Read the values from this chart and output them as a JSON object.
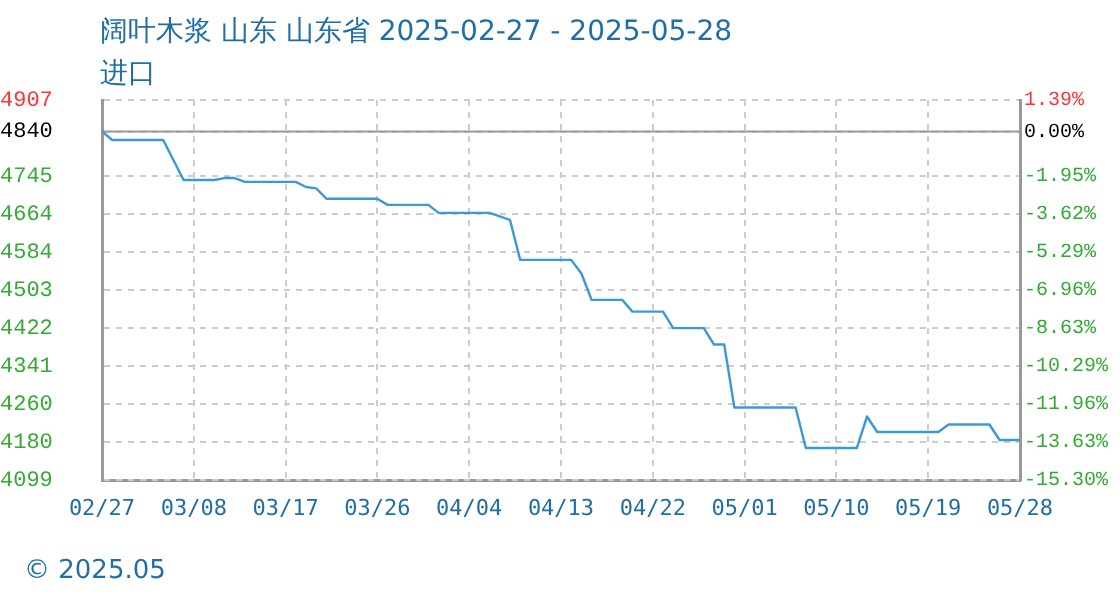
{
  "chart_data": {
    "type": "line",
    "title": "阔叶木浆 山东 山东省 2025-02-27 - 2025-05-28",
    "ylabel": "进口",
    "x": [
      "2025-02-27",
      "2025-02-28",
      "2025-03-05",
      "2025-03-07",
      "2025-03-10",
      "2025-03-11",
      "2025-03-12",
      "2025-03-13",
      "2025-03-18",
      "2025-03-19",
      "2025-03-20",
      "2025-03-21",
      "2025-03-26",
      "2025-03-27",
      "2025-03-31",
      "2025-04-01",
      "2025-04-06",
      "2025-04-08",
      "2025-04-09",
      "2025-04-14",
      "2025-04-15",
      "2025-04-16",
      "2025-04-19",
      "2025-04-20",
      "2025-04-23",
      "2025-04-24",
      "2025-04-27",
      "2025-04-28",
      "2025-04-29",
      "2025-04-30",
      "2025-05-06",
      "2025-05-07",
      "2025-05-12",
      "2025-05-13",
      "2025-05-14",
      "2025-05-20",
      "2025-05-21",
      "2025-05-25",
      "2025-05-26",
      "2025-05-28"
    ],
    "series": [
      {
        "color": "#3a9ad9",
        "values": [
          4840,
          4822,
          4822,
          4737,
          4737,
          4741,
          4741,
          4733,
          4733,
          4722,
          4719,
          4697,
          4697,
          4684,
          4684,
          4667,
          4667,
          4652,
          4567,
          4567,
          4538,
          4482,
          4482,
          4457,
          4457,
          4422,
          4422,
          4387,
          4387,
          4253,
          4253,
          4167,
          4167,
          4234,
          4201,
          4201,
          4217,
          4217,
          4184,
          4184
        ]
      }
    ],
    "xlim": [
      "2025-02-27",
      "2025-05-28"
    ],
    "xticks": [
      {
        "value": "2025-02-27",
        "label": "02/27"
      },
      {
        "value": "2025-03-08",
        "label": "03/08"
      },
      {
        "value": "2025-03-17",
        "label": "03/17"
      },
      {
        "value": "2025-03-26",
        "label": "03/26"
      },
      {
        "value": "2025-04-04",
        "label": "04/04"
      },
      {
        "value": "2025-04-13",
        "label": "04/13"
      },
      {
        "value": "2025-04-22",
        "label": "04/22"
      },
      {
        "value": "2025-05-01",
        "label": "05/01"
      },
      {
        "value": "2025-05-10",
        "label": "05/10"
      },
      {
        "value": "2025-05-19",
        "label": "05/19"
      },
      {
        "value": "2025-05-28",
        "label": "05/28"
      }
    ],
    "ylim": [
      4099,
      4907
    ],
    "yticks": [
      4099,
      4180,
      4260,
      4341,
      4422,
      4503,
      4584,
      4664,
      4745,
      4840,
      4907
    ],
    "y2lim": [
      -15.3,
      1.39
    ],
    "y2ticks": [
      {
        "value": -15.3,
        "label": "-15.30%"
      },
      {
        "value": -13.63,
        "label": "-13.63%"
      },
      {
        "value": -11.96,
        "label": "-11.96%"
      },
      {
        "value": -10.29,
        "label": "-10.29%"
      },
      {
        "value": -8.63,
        "label": "-8.63%"
      },
      {
        "value": -6.96,
        "label": "-6.96%"
      },
      {
        "value": -5.29,
        "label": "-5.29%"
      },
      {
        "value": -3.62,
        "label": "-3.62%"
      },
      {
        "value": -1.95,
        "label": "-1.95%"
      },
      {
        "value": 0,
        "label": "0.00%"
      },
      {
        "value": 1.39,
        "label": "1.39%"
      }
    ],
    "ref_lines": [
      {
        "axis": "y",
        "value": 4840,
        "color": "#999999"
      }
    ],
    "annotations": [
      "© 2025.05"
    ],
    "grid": true,
    "legend": false,
    "marker": "none",
    "line_style": "solid"
  }
}
